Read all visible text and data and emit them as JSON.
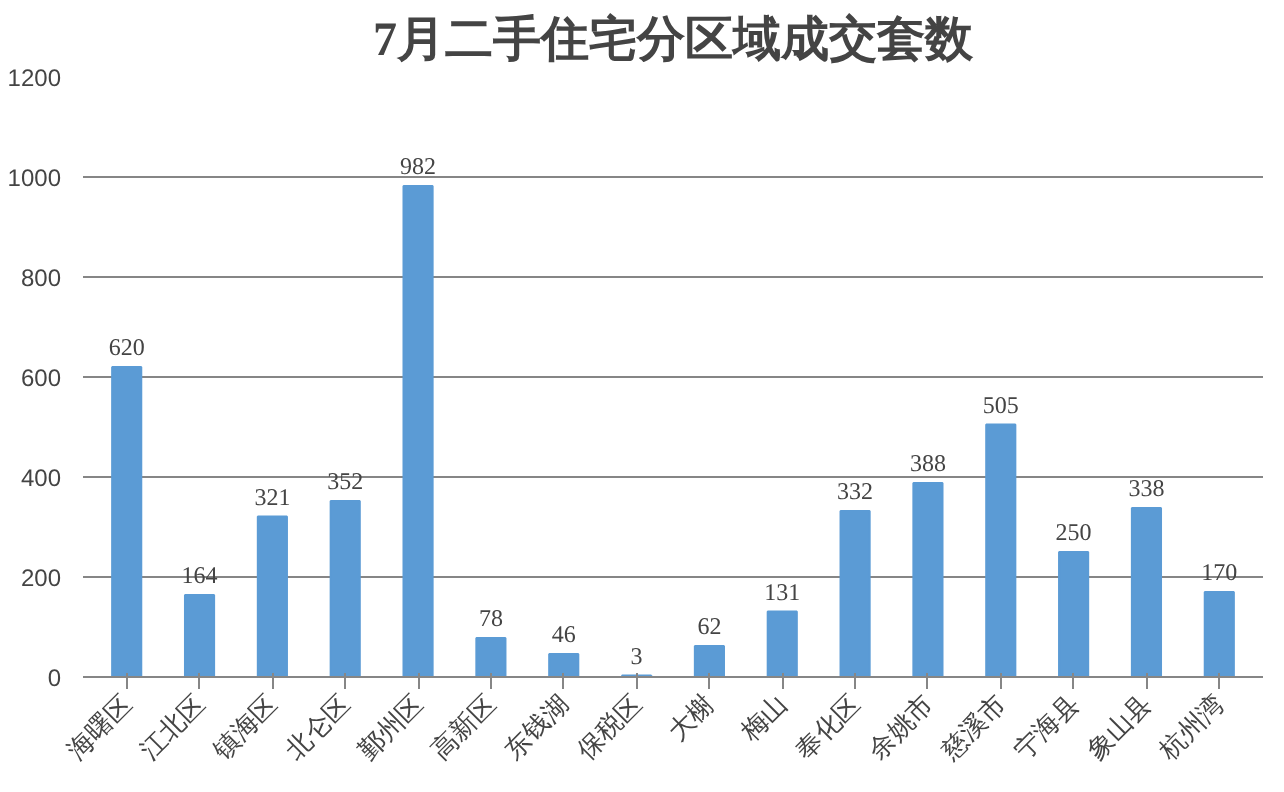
{
  "chart_data": {
    "type": "bar",
    "title": "7月二手住宅分区域成交套数",
    "categories": [
      "海曙区",
      "江北区",
      "镇海区",
      "北仑区",
      "鄞州区",
      "高新区",
      "东钱湖",
      "保税区",
      "大榭",
      "梅山",
      "奉化区",
      "余姚市",
      "慈溪市",
      "宁海县",
      "象山县",
      "杭州湾"
    ],
    "values": [
      620,
      164,
      321,
      352,
      982,
      78,
      46,
      3,
      62,
      131,
      332,
      388,
      505,
      250,
      338,
      170
    ],
    "color": "#5b9bd5",
    "ylim": [
      0,
      1200
    ],
    "yticks": [
      0,
      200,
      400,
      600,
      800,
      1000,
      1200
    ],
    "grid": "y",
    "data_labels": true
  }
}
